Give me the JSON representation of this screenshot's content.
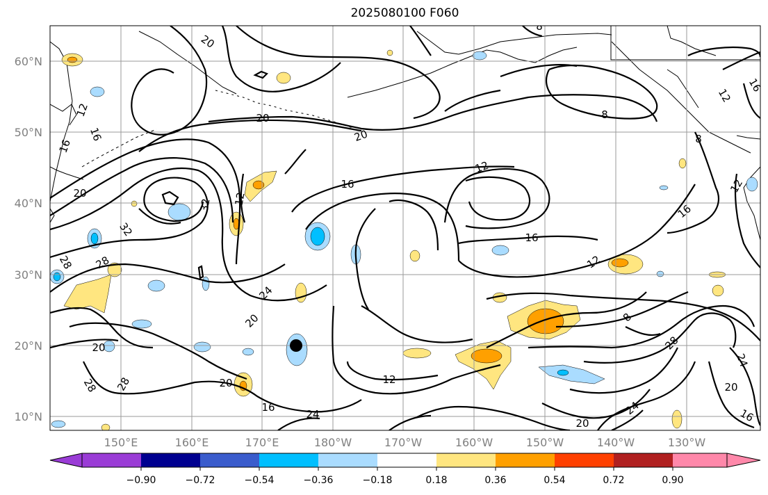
{
  "title": "2025080100 F060",
  "map": {
    "lat_labels": [
      "60°N",
      "50°N",
      "40°N",
      "30°N",
      "20°N",
      "10°N"
    ],
    "lon_labels": [
      "150°E",
      "160°E",
      "170°E",
      "180°W",
      "170°W",
      "160°W",
      "150°W",
      "140°W",
      "130°W"
    ],
    "contour_labels": [
      "20",
      "8",
      "12",
      "16",
      "16",
      "20",
      "20",
      "20",
      "12",
      "16",
      "8",
      "12",
      "16",
      "8",
      "12",
      "16",
      "32",
      "32",
      "28",
      "28",
      "24",
      "20",
      "12",
      "20",
      "16",
      "28",
      "28",
      "20",
      "24",
      "24",
      "20",
      "8",
      "28",
      "24",
      "20",
      "16",
      "12",
      "16",
      "12"
    ],
    "storm_marker": "tropical-cyclone-position"
  },
  "colorbar": {
    "tick_labels": [
      "−0.90",
      "−0.72",
      "−0.54",
      "−0.36",
      "−0.18",
      "0.18",
      "0.36",
      "0.54",
      "0.72",
      "0.90"
    ],
    "colors": [
      "#9a3cd6",
      "#000090",
      "#3a5ccc",
      "#00bfff",
      "#aadcff",
      "#ffffff",
      "#ffe680",
      "#ffa000",
      "#ff4000",
      "#b02020",
      "#ff88aa"
    ]
  }
}
